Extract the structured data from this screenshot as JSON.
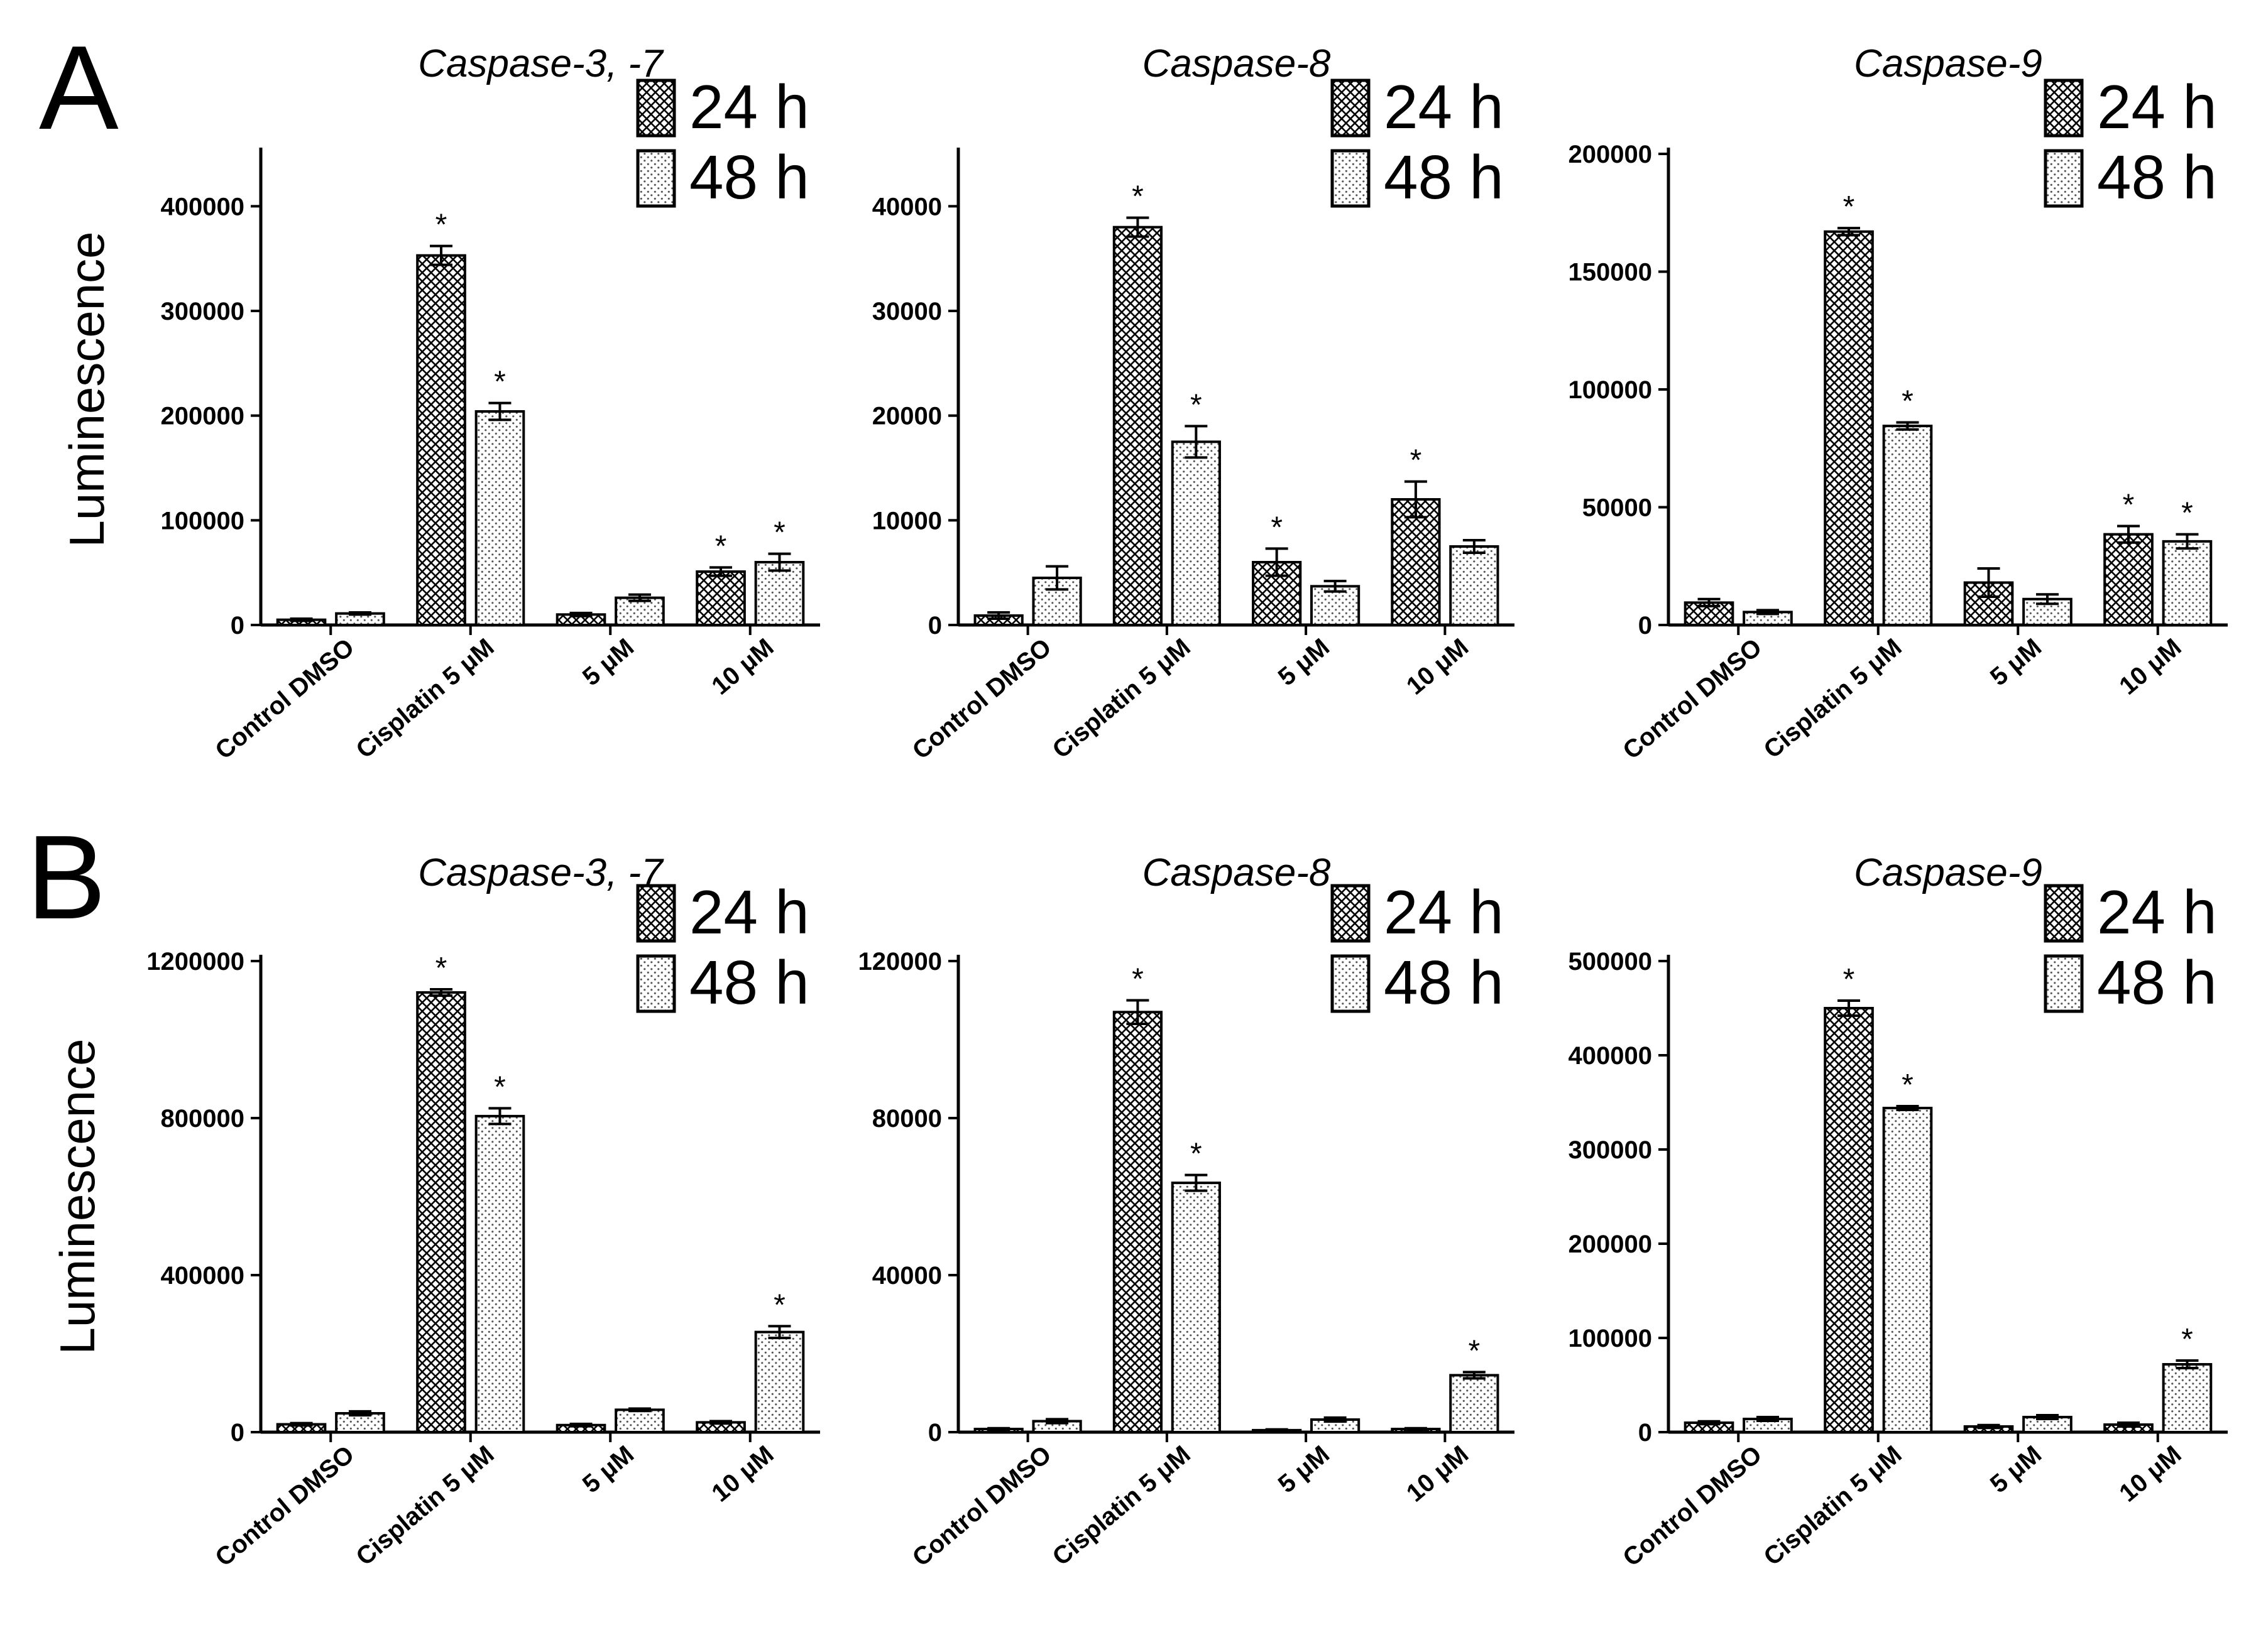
{
  "panels": {
    "a": {
      "letter": "A"
    },
    "b": {
      "letter": "B"
    }
  },
  "chart_data": [
    {
      "type": "bar",
      "panel": "A",
      "title": "Caspase-3, -7",
      "ylabel": "Luminescence",
      "categories": [
        "Control DMSO",
        "Cisplatin 5 μM",
        "5 μM",
        "10 μM"
      ],
      "ylim": [
        0,
        450000
      ],
      "yticks": [
        0,
        100000,
        200000,
        300000,
        400000
      ],
      "ytick_labels": [
        "0",
        "100000",
        "200000",
        "300000",
        "400000"
      ],
      "legend": [
        "24 h",
        "48 h"
      ],
      "series": [
        {
          "name": "24 h",
          "values": [
            5000,
            353000,
            10000,
            51000
          ],
          "errors": [
            1000,
            9000,
            1500,
            4000
          ],
          "significant": [
            false,
            true,
            false,
            true
          ]
        },
        {
          "name": "48 h",
          "values": [
            11000,
            204000,
            26000,
            60000
          ],
          "errors": [
            1000,
            8000,
            3000,
            8000
          ],
          "significant": [
            false,
            true,
            false,
            true
          ]
        }
      ]
    },
    {
      "type": "bar",
      "panel": "A",
      "title": "Caspase-8",
      "ylabel": "",
      "categories": [
        "Control DMSO",
        "Cisplatin 5 μM",
        "5 μM",
        "10 μM"
      ],
      "ylim": [
        0,
        45000
      ],
      "yticks": [
        0,
        10000,
        20000,
        30000,
        40000
      ],
      "ytick_labels": [
        "0",
        "10000",
        "20000",
        "30000",
        "40000"
      ],
      "legend": [
        "24 h",
        "48 h"
      ],
      "series": [
        {
          "name": "24 h",
          "values": [
            900,
            38000,
            6000,
            12000
          ],
          "errors": [
            300,
            900,
            1300,
            1700
          ],
          "significant": [
            false,
            true,
            true,
            true
          ]
        },
        {
          "name": "48 h",
          "values": [
            4500,
            17500,
            3700,
            7500
          ],
          "errors": [
            1100,
            1500,
            500,
            600
          ],
          "significant": [
            false,
            true,
            false,
            false
          ]
        }
      ]
    },
    {
      "type": "bar",
      "panel": "A",
      "title": "Caspase-9",
      "ylabel": "",
      "categories": [
        "Control DMSO",
        "Cisplatin 5 μM",
        "5 μM",
        "10 μM"
      ],
      "ylim": [
        0,
        200000
      ],
      "yticks": [
        0,
        50000,
        100000,
        150000,
        200000
      ],
      "ytick_labels": [
        "0",
        "50000",
        "100000",
        "150000",
        "200000"
      ],
      "legend": [
        "24 h",
        "48 h"
      ],
      "series": [
        {
          "name": "24 h",
          "values": [
            9500,
            167000,
            18000,
            38500
          ],
          "errors": [
            1500,
            1500,
            6000,
            3500
          ],
          "significant": [
            false,
            true,
            false,
            true
          ]
        },
        {
          "name": "48 h",
          "values": [
            5500,
            84500,
            11000,
            35500
          ],
          "errors": [
            800,
            1500,
            2000,
            3000
          ],
          "significant": [
            false,
            true,
            false,
            true
          ]
        }
      ]
    },
    {
      "type": "bar",
      "panel": "B",
      "title": "Caspase-3, -7",
      "ylabel": "Luminescence",
      "categories": [
        "Control DMSO",
        "Cisplatin 5 μM",
        "5 μM",
        "10 μM"
      ],
      "ylim": [
        0,
        1200000
      ],
      "yticks": [
        0,
        400000,
        800000,
        1200000
      ],
      "ytick_labels": [
        "0",
        "400000",
        "800000",
        "1200000"
      ],
      "legend": [
        "24 h",
        "48 h"
      ],
      "series": [
        {
          "name": "24 h",
          "values": [
            20000,
            1120000,
            18000,
            25000
          ],
          "errors": [
            3000,
            8000,
            3000,
            3000
          ],
          "significant": [
            false,
            true,
            false,
            false
          ]
        },
        {
          "name": "48 h",
          "values": [
            48000,
            805000,
            57000,
            255000
          ],
          "errors": [
            5000,
            20000,
            3000,
            15000
          ],
          "significant": [
            false,
            true,
            false,
            true
          ]
        }
      ]
    },
    {
      "type": "bar",
      "panel": "B",
      "title": "Caspase-8",
      "ylabel": "",
      "categories": [
        "Control DMSO",
        "Cisplatin 5 μM",
        "5 μM",
        "10 μM"
      ],
      "ylim": [
        0,
        120000
      ],
      "yticks": [
        0,
        40000,
        80000,
        120000
      ],
      "ytick_labels": [
        "0",
        "40000",
        "80000",
        "120000"
      ],
      "legend": [
        "24 h",
        "48 h"
      ],
      "series": [
        {
          "name": "24 h",
          "values": [
            800,
            107000,
            500,
            800
          ],
          "errors": [
            200,
            3000,
            200,
            200
          ],
          "significant": [
            false,
            true,
            false,
            false
          ]
        },
        {
          "name": "48 h",
          "values": [
            2800,
            63500,
            3200,
            14500
          ],
          "errors": [
            500,
            2000,
            500,
            800
          ],
          "significant": [
            false,
            true,
            false,
            true
          ]
        }
      ]
    },
    {
      "type": "bar",
      "panel": "B",
      "title": "Caspase-9",
      "ylabel": "",
      "categories": [
        "Control DMSO",
        "Cisplatin 5 μM",
        "5 μM",
        "10 μM"
      ],
      "ylim": [
        0,
        500000
      ],
      "yticks": [
        0,
        100000,
        200000,
        300000,
        400000,
        500000
      ],
      "ytick_labels": [
        "0",
        "100000",
        "200000",
        "300000",
        "400000",
        "500000"
      ],
      "legend": [
        "24 h",
        "48 h"
      ],
      "series": [
        {
          "name": "24 h",
          "values": [
            10000,
            450000,
            6000,
            8000
          ],
          "errors": [
            1500,
            8000,
            1500,
            2000
          ],
          "significant": [
            false,
            true,
            false,
            false
          ]
        },
        {
          "name": "48 h",
          "values": [
            14000,
            344000,
            16000,
            72000
          ],
          "errors": [
            2000,
            2000,
            2000,
            4000
          ],
          "significant": [
            false,
            true,
            false,
            true
          ]
        }
      ]
    }
  ]
}
